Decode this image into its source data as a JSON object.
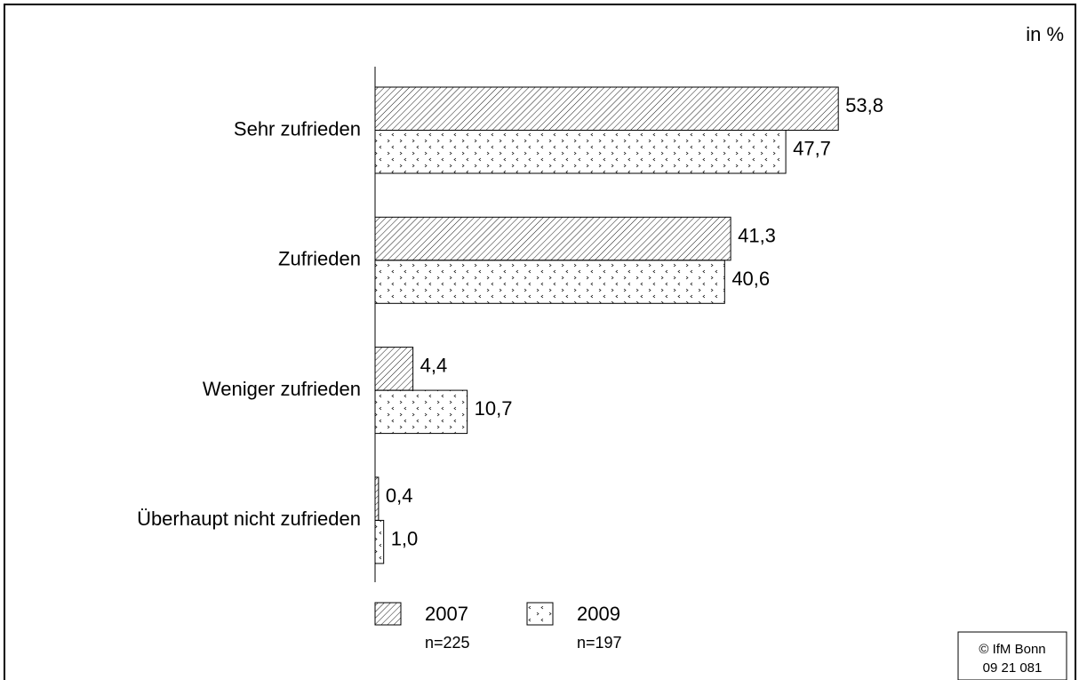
{
  "chart_data": {
    "type": "barh",
    "unit_label": "in %",
    "categories": [
      "Sehr zufrieden",
      "Zufrieden",
      "Weniger zufrieden",
      "Überhaupt nicht zufrieden"
    ],
    "series": [
      {
        "name": "2007",
        "sample": "n=225",
        "color": "#000000",
        "pattern": "hatch",
        "values": [
          53.8,
          41.3,
          4.4,
          0.4
        ],
        "value_labels": [
          "53,8",
          "41,3",
          "4,4",
          "0,4"
        ]
      },
      {
        "name": "2009",
        "sample": "n=197",
        "color": "#000000",
        "pattern": "dots",
        "values": [
          47.7,
          40.6,
          10.7,
          1.0
        ],
        "value_labels": [
          "47,7",
          "40,6",
          "10,7",
          "1,0"
        ]
      }
    ],
    "xlim": [
      0,
      80
    ],
    "footer": {
      "source": "© IfM Bonn",
      "code": "09 21 081"
    }
  }
}
